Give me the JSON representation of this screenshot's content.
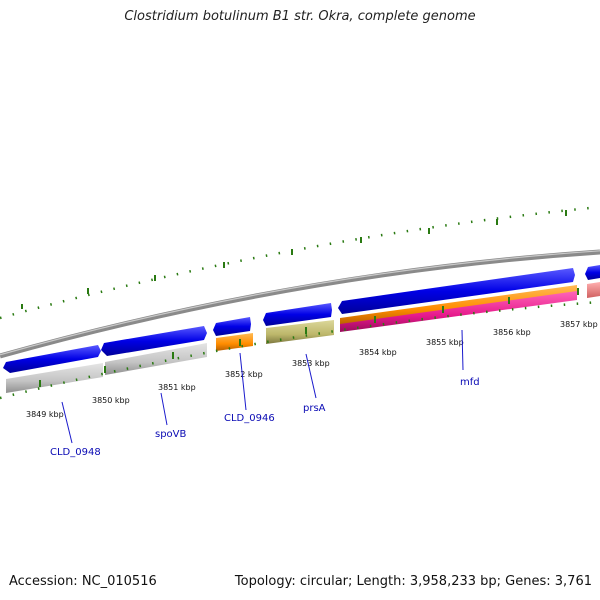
{
  "title": "Clostridium botulinum B1 str. Okra, complete genome",
  "footer": {
    "accession": "Accession: NC_010516",
    "summary": "Topology: circular; Length: 3,958,233 bp; Genes: 3,761"
  },
  "scale_labels": [
    "3849 kbp",
    "3850 kbp",
    "3851 kbp",
    "3852 kbp",
    "3853 kbp",
    "3854 kbp",
    "3855 kbp",
    "3856 kbp",
    "3857 kbp"
  ],
  "gene_labels": [
    "CLD_0948",
    "spoVB",
    "CLD_0946",
    "prsA",
    "mfd"
  ],
  "colors": {
    "cds": "#0000e6",
    "pseudo_grey": "#c8c8c8",
    "orange": "#ff8c00",
    "olive": "#bdb76b",
    "pink": "#e6198c",
    "salmon": "#f08080",
    "backbone": "#888888",
    "ticks": "#2a7a12",
    "label": "#0a0ab4"
  }
}
